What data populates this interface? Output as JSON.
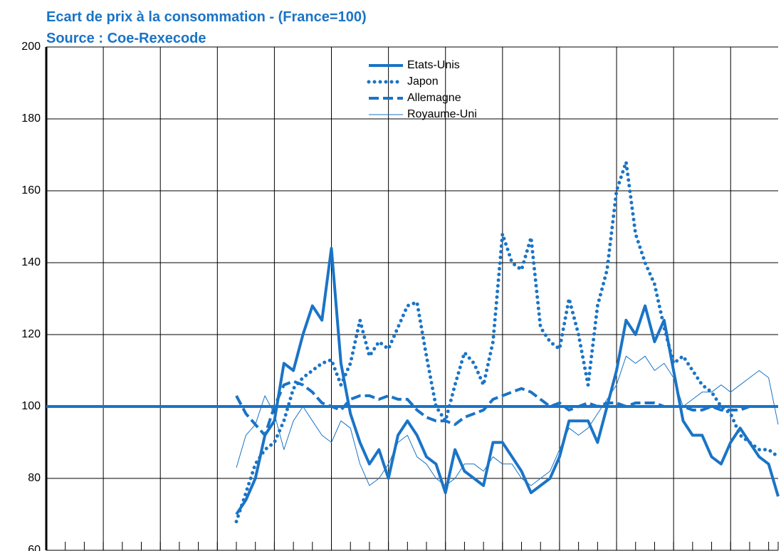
{
  "chart_data": {
    "type": "line",
    "title": "Ecart de prix à la consommation - (France=100)",
    "subtitle": "Source : Coe-Rexecode",
    "categories": [
      null,
      null,
      null,
      null,
      null,
      null,
      null,
      null,
      null,
      null,
      null,
      null,
      null,
      null,
      null,
      null,
      null,
      null,
      null,
      null,
      null,
      null,
      null,
      null,
      null,
      null,
      null,
      null,
      null,
      null,
      null,
      null,
      null,
      null,
      null,
      null,
      null,
      null,
      null,
      null,
      null,
      null,
      null,
      null,
      null,
      null,
      null,
      null,
      null,
      null,
      null,
      null,
      null,
      null,
      null,
      null,
      null,
      null,
      null,
      null,
      null,
      null,
      null,
      null,
      null,
      null,
      null,
      null,
      null,
      null,
      null,
      null,
      null,
      null,
      null,
      null,
      null,
      null
    ],
    "series": [
      {
        "name": "Etats-Unis",
        "color": "#1a74c6",
        "style": "solid",
        "values": [
          null,
          null,
          null,
          null,
          null,
          null,
          null,
          null,
          null,
          null,
          null,
          null,
          null,
          null,
          null,
          null,
          null,
          null,
          null,
          null,
          70,
          74,
          80,
          92,
          96,
          112,
          110,
          120,
          128,
          124,
          144,
          112,
          98,
          90,
          84,
          88,
          80,
          92,
          96,
          92,
          86,
          84,
          76,
          88,
          82,
          80,
          78,
          90,
          90,
          86,
          82,
          76,
          78,
          80,
          86,
          96,
          96,
          96,
          90,
          100,
          110,
          124,
          120,
          128,
          118,
          124,
          110,
          96,
          92,
          92,
          86,
          84,
          90,
          94,
          90,
          86,
          84,
          75
        ]
      },
      {
        "name": "Japon",
        "color": "#1a74c6",
        "style": "dotted",
        "values": [
          null,
          null,
          null,
          null,
          null,
          null,
          null,
          null,
          null,
          null,
          null,
          null,
          null,
          null,
          null,
          null,
          null,
          null,
          null,
          null,
          68,
          76,
          84,
          88,
          90,
          96,
          105,
          108,
          110,
          112,
          113,
          106,
          112,
          124,
          114,
          118,
          116,
          122,
          128,
          129,
          114,
          100,
          96,
          106,
          115,
          112,
          106,
          118,
          148,
          140,
          138,
          147,
          122,
          118,
          116,
          130,
          120,
          106,
          128,
          138,
          160,
          168,
          148,
          140,
          134,
          122,
          112,
          114,
          110,
          106,
          104,
          100,
          98,
          92,
          90,
          88,
          88,
          86
        ]
      },
      {
        "name": "Allemagne",
        "color": "#1a74c6",
        "style": "dashed",
        "values": [
          null,
          null,
          null,
          null,
          null,
          null,
          null,
          null,
          null,
          null,
          null,
          null,
          null,
          null,
          null,
          null,
          null,
          null,
          null,
          null,
          103,
          98,
          95,
          92,
          100,
          106,
          107,
          106,
          104,
          101,
          100,
          99,
          102,
          103,
          103,
          102,
          103,
          102,
          102,
          99,
          97,
          96,
          96,
          95,
          97,
          98,
          99,
          102,
          103,
          104,
          105,
          104,
          102,
          100,
          101,
          99,
          100,
          101,
          100,
          101,
          101,
          100,
          101,
          101,
          101,
          100,
          100,
          100,
          99,
          99,
          100,
          99,
          99,
          99,
          100,
          100,
          100,
          100
        ]
      },
      {
        "name": "Royaume-Uni",
        "color": "#1a74c6",
        "style": "thin",
        "values": [
          null,
          null,
          null,
          null,
          null,
          null,
          null,
          null,
          null,
          null,
          null,
          null,
          null,
          null,
          null,
          null,
          null,
          null,
          null,
          null,
          83,
          92,
          95,
          103,
          98,
          88,
          96,
          100,
          96,
          92,
          90,
          96,
          94,
          84,
          78,
          80,
          84,
          90,
          92,
          86,
          84,
          80,
          78,
          80,
          84,
          84,
          82,
          86,
          84,
          84,
          80,
          78,
          80,
          82,
          88,
          94,
          92,
          94,
          98,
          102,
          106,
          114,
          112,
          114,
          110,
          112,
          108,
          100,
          102,
          104,
          104,
          106,
          104,
          106,
          108,
          110,
          108,
          95
        ]
      }
    ],
    "reference_line": 100,
    "ylim": [
      60,
      200
    ],
    "yticks": [
      60,
      80,
      100,
      120,
      140,
      160,
      180,
      200
    ],
    "grid": true,
    "legend": "top"
  }
}
